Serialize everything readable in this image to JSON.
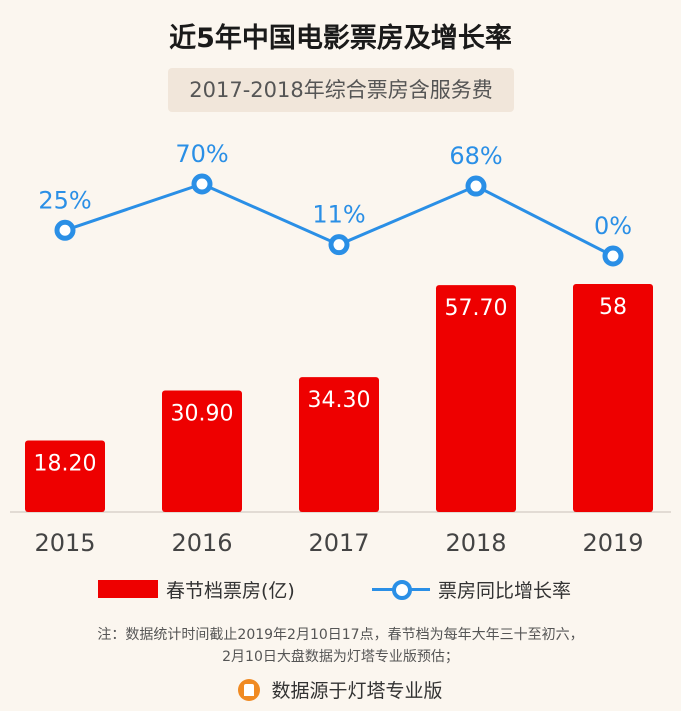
{
  "title": "近5年中国电影票房及增长率",
  "subtitle": "2017-2018年综合票房含服务费",
  "chart_data": {
    "type": "bar",
    "categories": [
      "2015",
      "2016",
      "2017",
      "2018",
      "2019"
    ],
    "series": [
      {
        "name": "春节档票房(亿)",
        "type": "bar",
        "values": [
          18.2,
          30.9,
          34.3,
          57.7,
          58
        ],
        "labels": [
          "18.20",
          "30.90",
          "34.30",
          "57.70",
          "58"
        ]
      },
      {
        "name": "票房同比增长率",
        "type": "line",
        "values": [
          25,
          70,
          11,
          68,
          0
        ],
        "labels": [
          "25%",
          "70%",
          "11%",
          "68%",
          "0%"
        ]
      }
    ],
    "colors": {
      "bar": "#ee0000",
      "line": "#2a8fe6"
    },
    "legend_position": "bottom"
  },
  "note": [
    "注：数据统计时间截止2019年2月10日17点，春节档为每年大年三十至初六，",
    "2月10日大盘数据为灯塔专业版预估；"
  ],
  "source": {
    "icon": "lighthouse-icon",
    "text": "数据源于灯塔专业版"
  }
}
